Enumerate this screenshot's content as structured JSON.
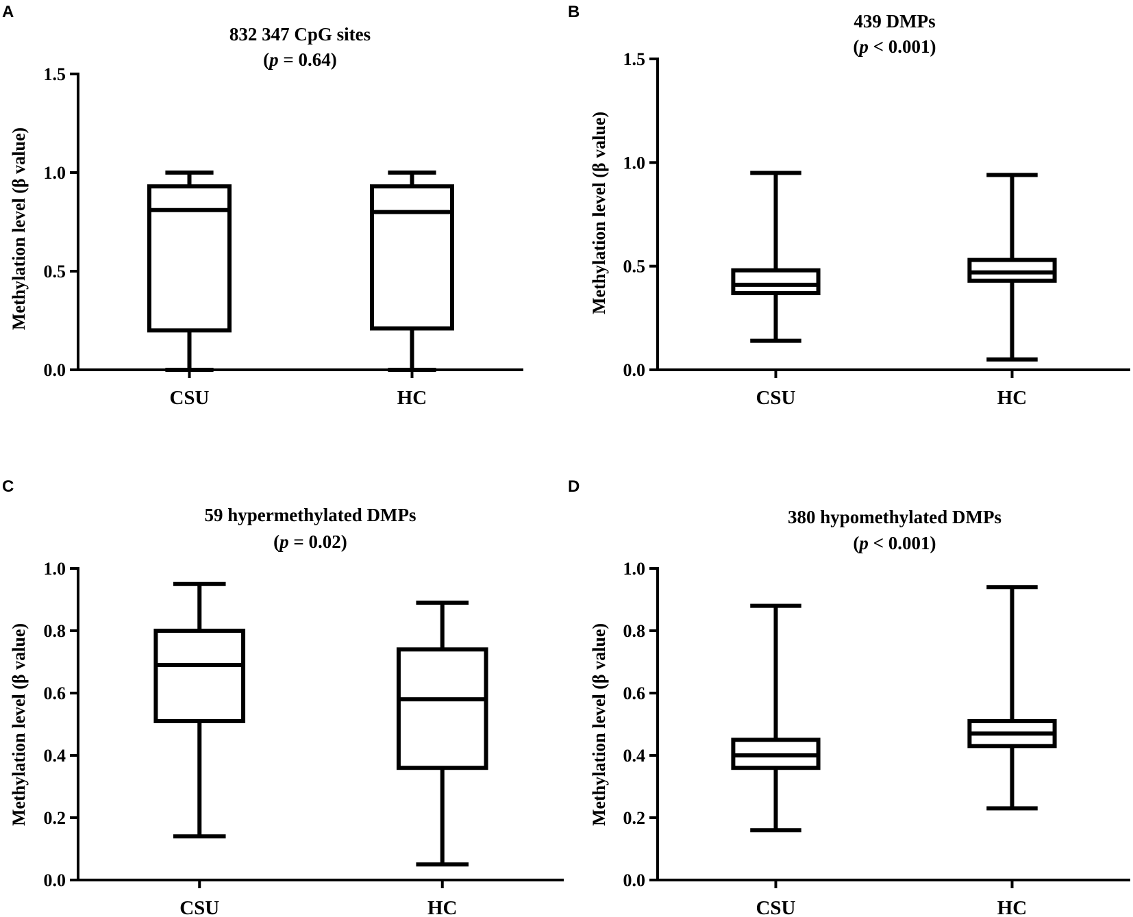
{
  "figure": {
    "panels": [
      {
        "letter": "A",
        "title_line1": "832 347 CpG sites",
        "p_prefix": "(",
        "p_symbol": "p",
        "p_rest": " = 0.64)"
      },
      {
        "letter": "B",
        "title_line1": "439 DMPs",
        "p_prefix": "(",
        "p_symbol": "p",
        "p_rest": " < 0.001)"
      },
      {
        "letter": "C",
        "title_line1": "59 hypermethylated DMPs",
        "p_prefix": "(",
        "p_symbol": "p",
        "p_rest": " = 0.02)"
      },
      {
        "letter": "D",
        "title_line1": "380 hypomethylated DMPs",
        "p_prefix": "(",
        "p_symbol": "p",
        "p_rest": " < 0.001)"
      }
    ]
  },
  "colors": {
    "stroke": "#000000",
    "background": "#ffffff"
  },
  "chart_data": [
    {
      "type": "box",
      "panel": "A",
      "title": "832 347 CpG sites (p = 0.64)",
      "ylabel": "Methylation level (β value)",
      "categories": [
        "CSU",
        "HC"
      ],
      "ylim": [
        0,
        1.5
      ],
      "yticks": [
        0.0,
        0.5,
        1.0,
        1.5
      ],
      "ytick_labels": [
        "0.0",
        "0.5",
        "1.0",
        "1.5"
      ],
      "boxes": [
        {
          "name": "CSU",
          "min": 0.0,
          "q1": 0.2,
          "median": 0.81,
          "q3": 0.93,
          "max": 1.0
        },
        {
          "name": "HC",
          "min": 0.0,
          "q1": 0.21,
          "median": 0.8,
          "q3": 0.93,
          "max": 1.0
        }
      ]
    },
    {
      "type": "box",
      "panel": "B",
      "title": "439 DMPs (p < 0.001)",
      "ylabel": "Methylation level (β value)",
      "categories": [
        "CSU",
        "HC"
      ],
      "ylim": [
        0,
        1.5
      ],
      "yticks": [
        0.0,
        0.5,
        1.0,
        1.5
      ],
      "ytick_labels": [
        "0.0",
        "0.5",
        "1.0",
        "1.5"
      ],
      "boxes": [
        {
          "name": "CSU",
          "min": 0.14,
          "q1": 0.37,
          "median": 0.41,
          "q3": 0.48,
          "max": 0.95
        },
        {
          "name": "HC",
          "min": 0.05,
          "q1": 0.43,
          "median": 0.47,
          "q3": 0.53,
          "max": 0.94
        }
      ]
    },
    {
      "type": "box",
      "panel": "C",
      "title": "59 hypermethylated DMPs (p = 0.02)",
      "ylabel": "Methylation level (β value)",
      "categories": [
        "CSU",
        "HC"
      ],
      "ylim": [
        0,
        1.0
      ],
      "yticks": [
        0.0,
        0.2,
        0.4,
        0.6,
        0.8,
        1.0
      ],
      "ytick_labels": [
        "0.0",
        "0.2",
        "0.4",
        "0.6",
        "0.8",
        "1.0"
      ],
      "boxes": [
        {
          "name": "CSU",
          "min": 0.14,
          "q1": 0.51,
          "median": 0.69,
          "q3": 0.8,
          "max": 0.95
        },
        {
          "name": "HC",
          "min": 0.05,
          "q1": 0.36,
          "median": 0.58,
          "q3": 0.74,
          "max": 0.89
        }
      ]
    },
    {
      "type": "box",
      "panel": "D",
      "title": "380 hypomethylated DMPs (p < 0.001)",
      "ylabel": "Methylation level (β value)",
      "categories": [
        "CSU",
        "HC"
      ],
      "ylim": [
        0,
        1.0
      ],
      "yticks": [
        0.0,
        0.2,
        0.4,
        0.6,
        0.8,
        1.0
      ],
      "ytick_labels": [
        "0.0",
        "0.2",
        "0.4",
        "0.6",
        "0.8",
        "1.0"
      ],
      "boxes": [
        {
          "name": "CSU",
          "min": 0.16,
          "q1": 0.36,
          "median": 0.4,
          "q3": 0.45,
          "max": 0.88
        },
        {
          "name": "HC",
          "min": 0.23,
          "q1": 0.43,
          "median": 0.47,
          "q3": 0.51,
          "max": 0.94
        }
      ]
    }
  ]
}
